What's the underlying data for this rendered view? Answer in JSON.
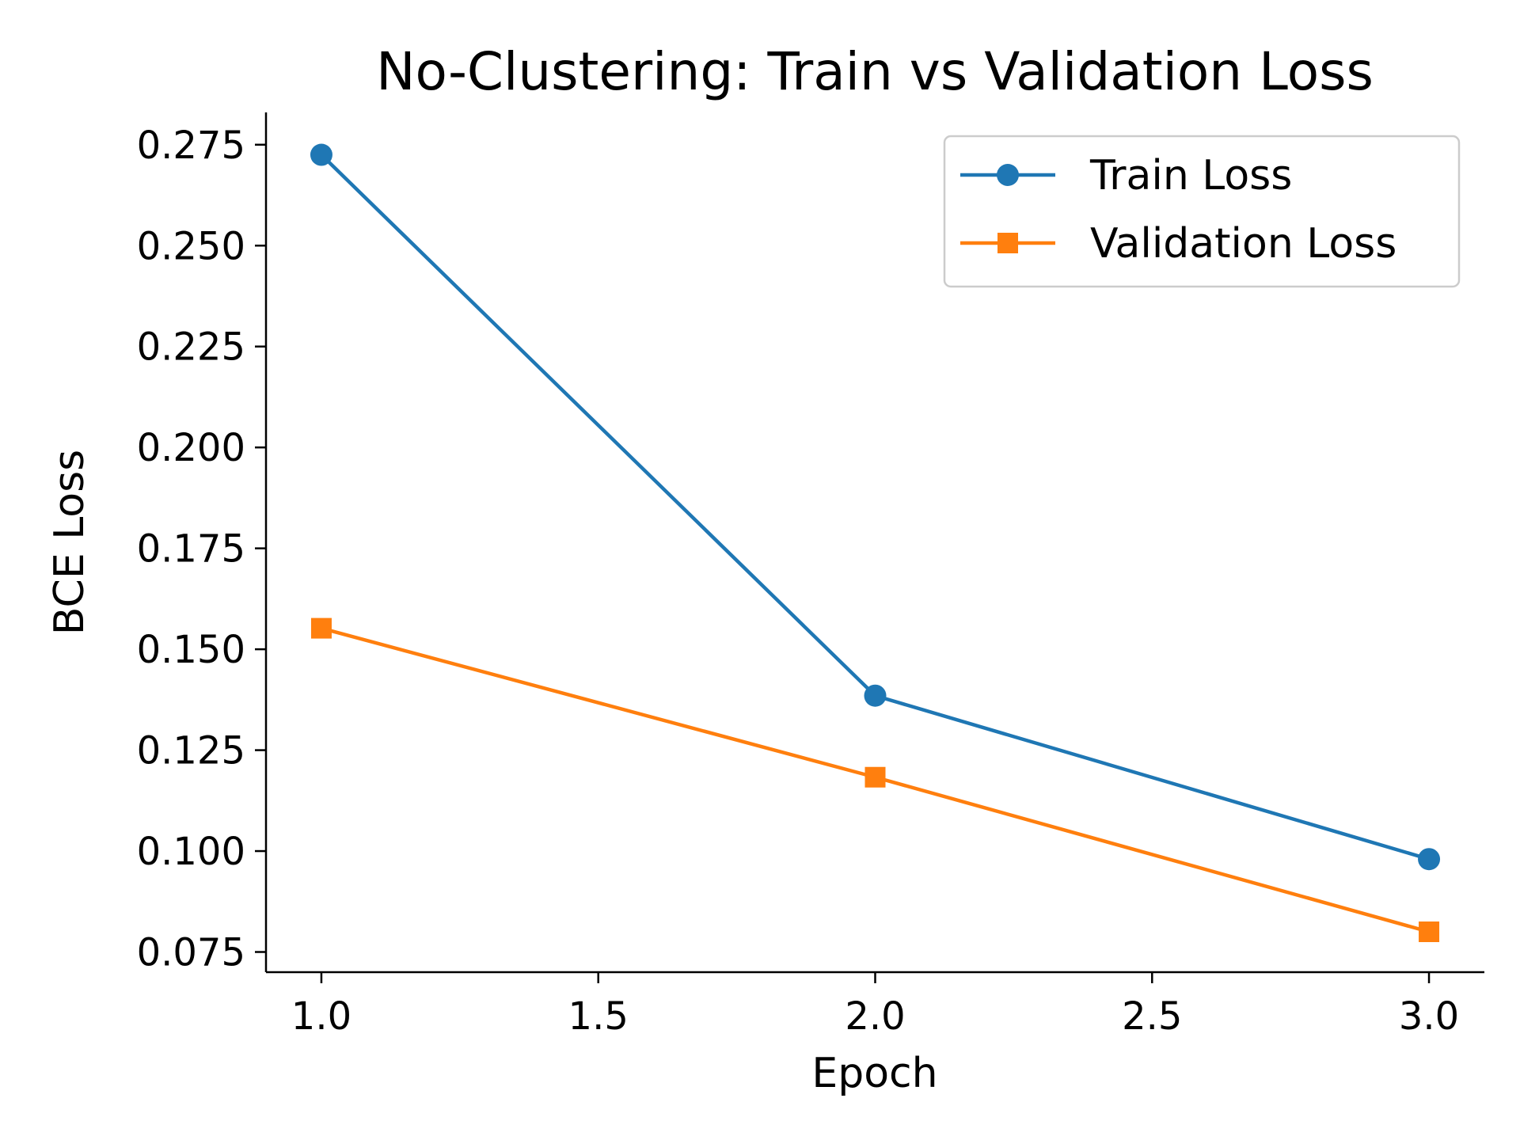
{
  "chart_data": {
    "type": "line",
    "title": "No-Clustering: Train vs Validation Loss",
    "xlabel": "Epoch",
    "ylabel": "BCE Loss",
    "x": [
      1,
      2,
      3
    ],
    "xlim": [
      0.9,
      3.1
    ],
    "ylim": [
      0.07,
      0.283
    ],
    "xticks": [
      1.0,
      1.5,
      2.0,
      2.5,
      3.0
    ],
    "xtick_labels": [
      "1.0",
      "1.5",
      "2.0",
      "2.5",
      "3.0"
    ],
    "yticks": [
      0.075,
      0.1,
      0.125,
      0.15,
      0.175,
      0.2,
      0.225,
      0.25,
      0.275
    ],
    "ytick_labels": [
      "0.075",
      "0.100",
      "0.125",
      "0.150",
      "0.175",
      "0.200",
      "0.225",
      "0.250",
      "0.275"
    ],
    "grid": false,
    "legend_position": "top-right",
    "series": [
      {
        "name": "Train Loss",
        "values": [
          0.2725,
          0.1385,
          0.098
        ],
        "color": "#1f77b4",
        "marker": "circle"
      },
      {
        "name": "Validation Loss",
        "values": [
          0.1552,
          0.1183,
          0.08
        ],
        "color": "#ff7f0e",
        "marker": "square"
      }
    ]
  }
}
